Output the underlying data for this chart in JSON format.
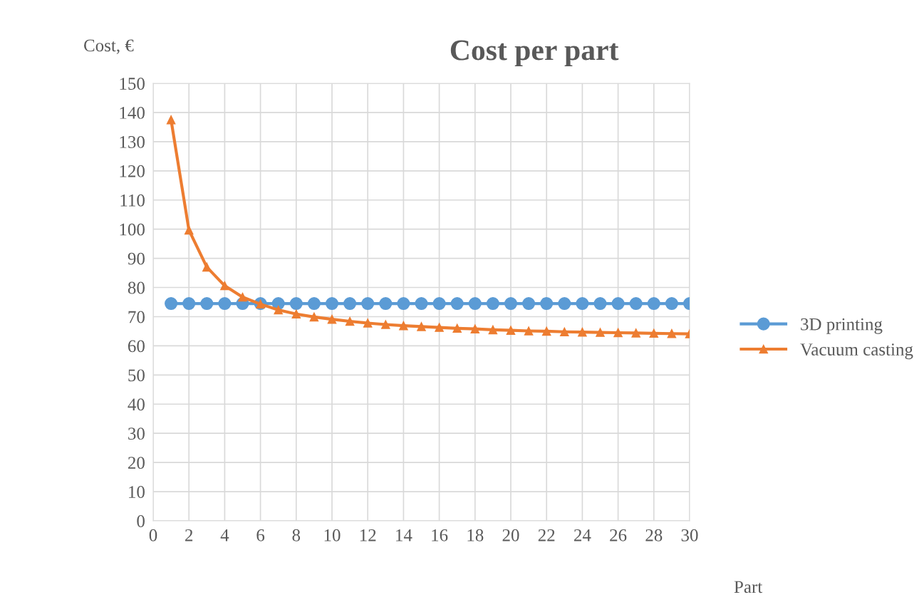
{
  "chart_data": {
    "type": "line",
    "title": "Cost per part",
    "ylabel": "Cost, €",
    "xlabel": "Part",
    "x": [
      1,
      2,
      3,
      4,
      5,
      6,
      7,
      8,
      9,
      10,
      11,
      12,
      13,
      14,
      15,
      16,
      17,
      18,
      19,
      20,
      21,
      22,
      23,
      24,
      25,
      26,
      27,
      28,
      29,
      30
    ],
    "series": [
      {
        "name": "3D printing",
        "color": "#5b9bd5",
        "marker": "circle",
        "values": [
          74.5,
          74.5,
          74.5,
          74.5,
          74.5,
          74.5,
          74.5,
          74.5,
          74.5,
          74.5,
          74.5,
          74.5,
          74.5,
          74.5,
          74.5,
          74.5,
          74.5,
          74.5,
          74.5,
          74.5,
          74.5,
          74.5,
          74.5,
          74.5,
          74.5,
          74.5,
          74.5,
          74.5,
          74.5,
          74.5
        ]
      },
      {
        "name": "Vacuum casting",
        "color": "#ed7d31",
        "marker": "triangle",
        "values": [
          137.5,
          99.7,
          87.0,
          80.6,
          76.7,
          74.3,
          72.3,
          70.9,
          69.9,
          69.1,
          68.4,
          67.8,
          67.3,
          66.9,
          66.6,
          66.3,
          66.0,
          65.8,
          65.5,
          65.3,
          65.1,
          65.0,
          64.8,
          64.7,
          64.6,
          64.5,
          64.4,
          64.3,
          64.2,
          64.1
        ]
      }
    ],
    "xlim": [
      0,
      30
    ],
    "xticks": [
      0,
      2,
      4,
      6,
      8,
      10,
      12,
      14,
      16,
      18,
      20,
      22,
      24,
      26,
      28,
      30
    ],
    "ylim": [
      0,
      150
    ],
    "yticks": [
      0,
      10,
      20,
      30,
      40,
      50,
      60,
      70,
      80,
      90,
      100,
      110,
      120,
      130,
      140,
      150
    ],
    "grid": true,
    "legend": "right",
    "line_style": "solid"
  }
}
